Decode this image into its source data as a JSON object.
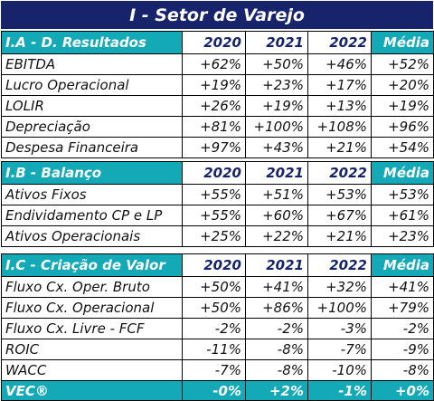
{
  "title": "I - Setor de Varejo",
  "years": [
    "2020",
    "2021",
    "2022"
  ],
  "avg_label": "Média",
  "sections": [
    {
      "header": "I.A - D. Resultados",
      "rows": [
        {
          "label": "EBITDA",
          "values": [
            "+62%",
            "+50%",
            "+46%",
            "+52%"
          ]
        },
        {
          "label": "Lucro Operacional",
          "values": [
            "+19%",
            "+23%",
            "+17%",
            "+20%"
          ]
        },
        {
          "label": "LOLIR",
          "values": [
            "+26%",
            "+19%",
            "+13%",
            "+19%"
          ]
        },
        {
          "label": "Depreciação",
          "values": [
            "+81%",
            "+100%",
            "+108%",
            "+96%"
          ]
        },
        {
          "label": "Despesa Financeira",
          "values": [
            "+97%",
            "+43%",
            "+21%",
            "+54%"
          ]
        }
      ]
    },
    {
      "header": "I.B - Balanço",
      "rows": [
        {
          "label": "Ativos Fixos",
          "values": [
            "+55%",
            "+51%",
            "+53%",
            "+53%"
          ]
        },
        {
          "label": "Endividamento CP e LP",
          "values": [
            "+55%",
            "+60%",
            "+67%",
            "+61%"
          ]
        },
        {
          "label": "Ativos Operacionais",
          "values": [
            "+25%",
            "+22%",
            "+21%",
            "+23%"
          ]
        }
      ]
    },
    {
      "header": "I.C - Criação de Valor",
      "rows": [
        {
          "label": "Fluxo Cx. Oper. Bruto",
          "values": [
            "+50%",
            "+41%",
            "+32%",
            "+41%"
          ]
        },
        {
          "label": "Fluxo Cx. Operacional",
          "values": [
            "+50%",
            "+86%",
            "+100%",
            "+79%"
          ]
        },
        {
          "label": "Fluxo Cx. Livre - FCF",
          "values": [
            "-2%",
            "-2%",
            "-3%",
            "-2%"
          ]
        },
        {
          "label": "ROIC",
          "values": [
            "-11%",
            "-8%",
            "-7%",
            "-9%"
          ]
        },
        {
          "label": "WACC",
          "values": [
            "-7%",
            "-8%",
            "-10%",
            "-8%"
          ]
        }
      ],
      "total": {
        "label": "VEC®",
        "values": [
          "-0%",
          "+2%",
          "-1%",
          "+0%"
        ]
      }
    }
  ],
  "colors": {
    "title_bg": "#17236a",
    "accent": "#14a9b6",
    "year_text": "#17236a"
  }
}
